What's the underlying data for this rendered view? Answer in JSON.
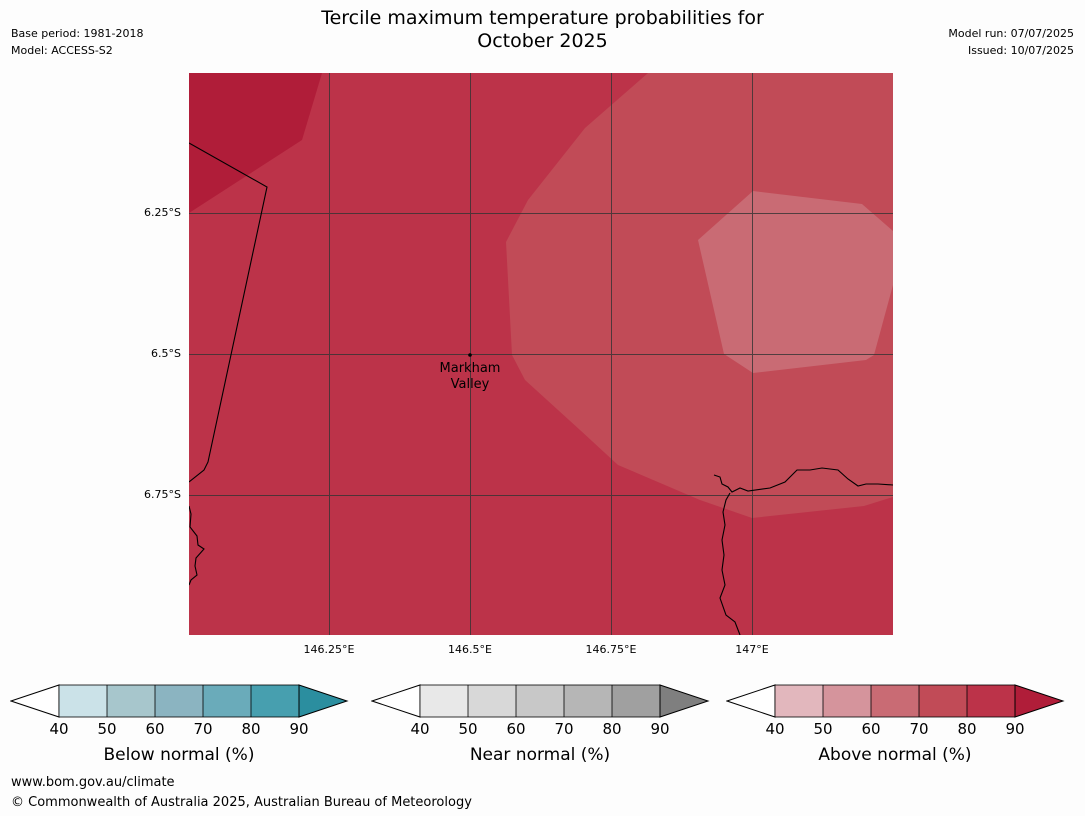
{
  "title_lines": [
    "Tercile maximum temperature probabilities for",
    "October 2025"
  ],
  "meta_left": [
    "Base period: 1981-2018",
    "Model: ACCESS-S2"
  ],
  "meta_right": [
    "Model run: 07/07/2025",
    "Issued: 10/07/2025"
  ],
  "map": {
    "lat_labels": [
      "6.25°S",
      "6.5°S",
      "6.75°S"
    ],
    "lon_labels": [
      "146.25°E",
      "146.5°E",
      "146.75°E",
      "147°E"
    ],
    "place": {
      "name_line1": "Markham",
      "name_line2": "Valley"
    },
    "colors": {
      "band_80_90": "#bc3349",
      "band_90_plus": "#b01d39",
      "band_70_80": "#c14b57",
      "band_60_70": "#c96b74",
      "border": "#000000",
      "gridline": "#333333"
    }
  },
  "colorbars": [
    {
      "caption": "Below normal (%)",
      "ticks": [
        "40",
        "50",
        "60",
        "70",
        "80",
        "90"
      ],
      "colors": [
        "#ffffff",
        "#cbe2e8",
        "#a7c6cc",
        "#8bb4c1",
        "#6aabba",
        "#479faf",
        "#2b8e9f"
      ]
    },
    {
      "caption": "Near normal (%)",
      "ticks": [
        "40",
        "50",
        "60",
        "70",
        "80",
        "90"
      ],
      "colors": [
        "#ffffff",
        "#e8e8e8",
        "#d8d8d8",
        "#c8c8c8",
        "#b6b6b6",
        "#a0a0a0",
        "#7f7f7f"
      ]
    },
    {
      "caption": "Above normal (%)",
      "ticks": [
        "40",
        "50",
        "60",
        "70",
        "80",
        "90"
      ],
      "colors": [
        "#ffffff",
        "#e2b7bd",
        "#d5949c",
        "#c96b74",
        "#c14b57",
        "#bc3349",
        "#b01d39"
      ]
    }
  ],
  "footer": {
    "url": "www.bom.gov.au/climate",
    "copyright": "© Commonwealth of Australia 2025, Australian Bureau of Meteorology"
  }
}
